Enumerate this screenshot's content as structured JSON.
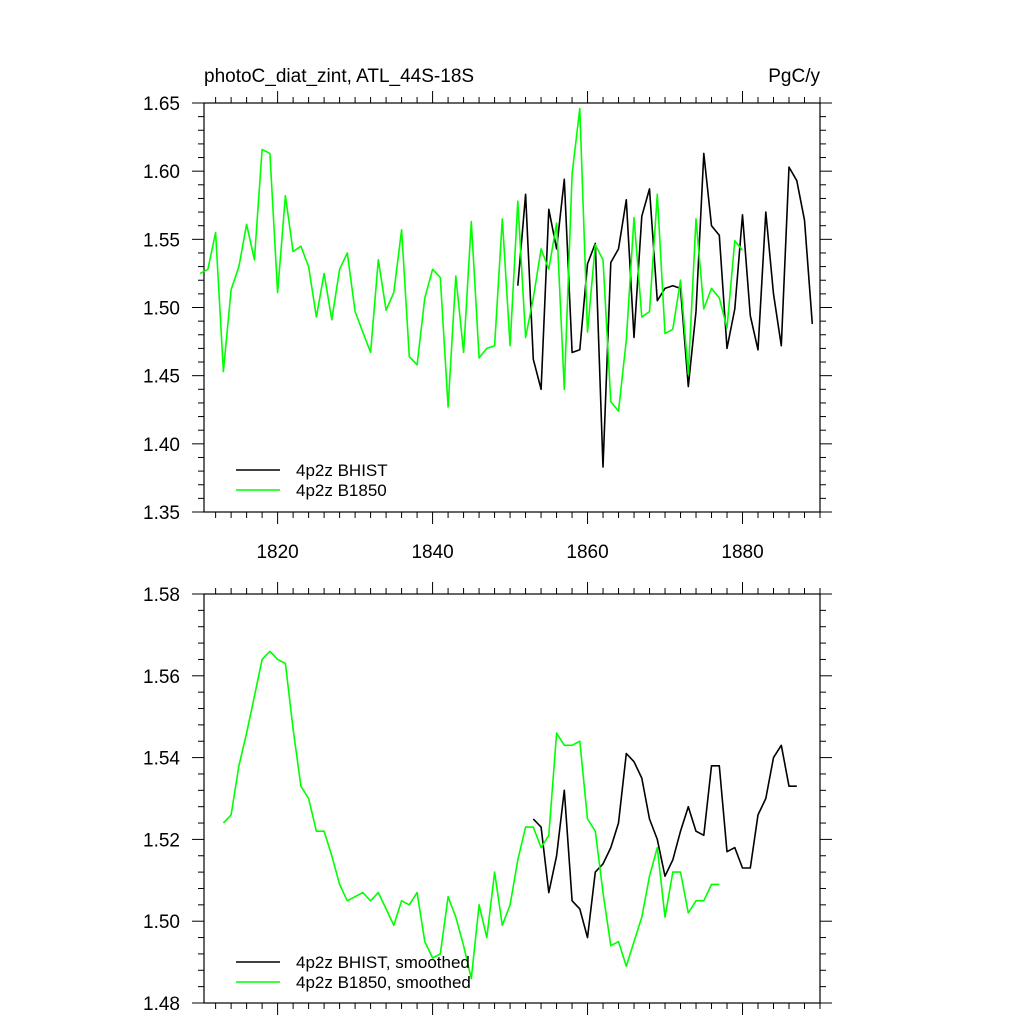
{
  "chart_data": [
    {
      "type": "line",
      "title_left": "photoC_diat_zint, ATL_44S-18S",
      "title_right": "PgC/y",
      "xlim": [
        1810.5,
        1890
      ],
      "ylim": [
        1.35,
        1.65
      ],
      "xticks": [
        1820,
        1840,
        1860,
        1880
      ],
      "xtick_labels": [
        "1820",
        "1840",
        "1860",
        "1880"
      ],
      "yticks": [
        1.35,
        1.4,
        1.45,
        1.5,
        1.55,
        1.6,
        1.65
      ],
      "ytick_labels": [
        "1.35",
        "1.40",
        "1.45",
        "1.50",
        "1.55",
        "1.60",
        "1.65"
      ],
      "legend_position": "bottom-left",
      "series": [
        {
          "name": "4p2z BHIST",
          "color": "#000000",
          "x": [
            1851,
            1852,
            1853,
            1854,
            1855,
            1856,
            1857,
            1858,
            1859,
            1860,
            1861,
            1862,
            1863,
            1864,
            1865,
            1866,
            1867,
            1868,
            1869,
            1870,
            1871,
            1872,
            1873,
            1874,
            1875,
            1876,
            1877,
            1878,
            1879,
            1880,
            1881,
            1882,
            1883,
            1884,
            1885,
            1886,
            1887,
            1888,
            1889
          ],
          "y": [
            1.516,
            1.583,
            1.462,
            1.44,
            1.572,
            1.543,
            1.594,
            1.467,
            1.469,
            1.532,
            1.547,
            1.383,
            1.533,
            1.543,
            1.579,
            1.478,
            1.567,
            1.587,
            1.505,
            1.514,
            1.516,
            1.514,
            1.442,
            1.497,
            1.613,
            1.56,
            1.553,
            1.47,
            1.499,
            1.568,
            1.494,
            1.469,
            1.57,
            1.51,
            1.472,
            1.603,
            1.593,
            1.564,
            1.488
          ]
        },
        {
          "name": "4p2z B1850",
          "color": "#00ff00",
          "x": [
            1810,
            1811,
            1812,
            1813,
            1814,
            1815,
            1816,
            1817,
            1818,
            1819,
            1820,
            1821,
            1822,
            1823,
            1824,
            1825,
            1826,
            1827,
            1828,
            1829,
            1830,
            1831,
            1832,
            1833,
            1834,
            1835,
            1836,
            1837,
            1838,
            1839,
            1840,
            1841,
            1842,
            1843,
            1844,
            1845,
            1846,
            1847,
            1848,
            1849,
            1850,
            1851,
            1852,
            1853,
            1854,
            1855,
            1856,
            1857,
            1858,
            1859,
            1860,
            1861,
            1862,
            1863,
            1864,
            1865,
            1866,
            1867,
            1868,
            1869,
            1870,
            1871,
            1872,
            1873,
            1874,
            1875,
            1876,
            1877,
            1878,
            1879,
            1880
          ],
          "y": [
            1.525,
            1.528,
            1.555,
            1.453,
            1.513,
            1.53,
            1.561,
            1.535,
            1.616,
            1.613,
            1.511,
            1.582,
            1.541,
            1.545,
            1.53,
            1.493,
            1.525,
            1.491,
            1.528,
            1.54,
            1.497,
            1.482,
            1.467,
            1.535,
            1.498,
            1.511,
            1.557,
            1.464,
            1.458,
            1.507,
            1.528,
            1.522,
            1.427,
            1.523,
            1.467,
            1.563,
            1.463,
            1.47,
            1.472,
            1.565,
            1.472,
            1.578,
            1.478,
            1.507,
            1.543,
            1.528,
            1.562,
            1.44,
            1.598,
            1.646,
            1.482,
            1.546,
            1.535,
            1.431,
            1.424,
            1.476,
            1.566,
            1.493,
            1.497,
            1.583,
            1.481,
            1.484,
            1.52,
            1.451,
            1.565,
            1.499,
            1.514,
            1.507,
            1.485,
            1.549,
            1.542
          ]
        }
      ]
    },
    {
      "type": "line",
      "xlim": [
        1810.5,
        1890
      ],
      "ylim": [
        1.48,
        1.58
      ],
      "xticks": [
        1820,
        1840,
        1860,
        1880
      ],
      "yticks": [
        1.48,
        1.5,
        1.52,
        1.54,
        1.56,
        1.58
      ],
      "ytick_labels": [
        "1.48",
        "1.50",
        "1.52",
        "1.54",
        "1.56",
        "1.58"
      ],
      "legend_position": "bottom-left",
      "series": [
        {
          "name": "4p2z BHIST, smoothed",
          "color": "#000000",
          "x": [
            1853,
            1854,
            1855,
            1856,
            1857,
            1858,
            1859,
            1860,
            1861,
            1862,
            1863,
            1864,
            1865,
            1866,
            1867,
            1868,
            1869,
            1870,
            1871,
            1872,
            1873,
            1874,
            1875,
            1876,
            1877,
            1878,
            1879,
            1880,
            1881,
            1882,
            1883,
            1884,
            1885,
            1886,
            1887
          ],
          "y": [
            1.525,
            1.523,
            1.507,
            1.516,
            1.532,
            1.505,
            1.503,
            1.496,
            1.512,
            1.514,
            1.518,
            1.524,
            1.541,
            1.539,
            1.535,
            1.525,
            1.52,
            1.511,
            1.515,
            1.522,
            1.528,
            1.522,
            1.521,
            1.538,
            1.538,
            1.517,
            1.518,
            1.513,
            1.513,
            1.526,
            1.53,
            1.54,
            1.543,
            1.533,
            1.533
          ]
        },
        {
          "name": "4p2z B1850, smoothed",
          "color": "#00ff00",
          "x": [
            1813,
            1814,
            1815,
            1816,
            1817,
            1818,
            1819,
            1820,
            1821,
            1822,
            1823,
            1824,
            1825,
            1826,
            1827,
            1828,
            1829,
            1830,
            1831,
            1832,
            1833,
            1834,
            1835,
            1836,
            1837,
            1838,
            1839,
            1840,
            1841,
            1842,
            1843,
            1844,
            1845,
            1846,
            1847,
            1848,
            1849,
            1850,
            1851,
            1852,
            1853,
            1854,
            1855,
            1856,
            1857,
            1858,
            1859,
            1860,
            1861,
            1862,
            1863,
            1864,
            1865,
            1866,
            1867,
            1868,
            1869,
            1870,
            1871,
            1872,
            1873,
            1874,
            1875,
            1876,
            1877
          ],
          "y": [
            1.524,
            1.526,
            1.538,
            1.546,
            1.555,
            1.564,
            1.566,
            1.564,
            1.563,
            1.547,
            1.533,
            1.53,
            1.522,
            1.522,
            1.516,
            1.509,
            1.505,
            1.506,
            1.507,
            1.505,
            1.507,
            1.503,
            1.499,
            1.505,
            1.504,
            1.507,
            1.495,
            1.491,
            1.492,
            1.506,
            1.501,
            1.494,
            1.486,
            1.504,
            1.496,
            1.512,
            1.499,
            1.504,
            1.515,
            1.523,
            1.523,
            1.518,
            1.521,
            1.546,
            1.543,
            1.543,
            1.544,
            1.525,
            1.522,
            1.507,
            1.494,
            1.495,
            1.489,
            1.495,
            1.501,
            1.511,
            1.518,
            1.501,
            1.512,
            1.512,
            1.502,
            1.505,
            1.505,
            1.509,
            1.509
          ]
        }
      ]
    }
  ]
}
